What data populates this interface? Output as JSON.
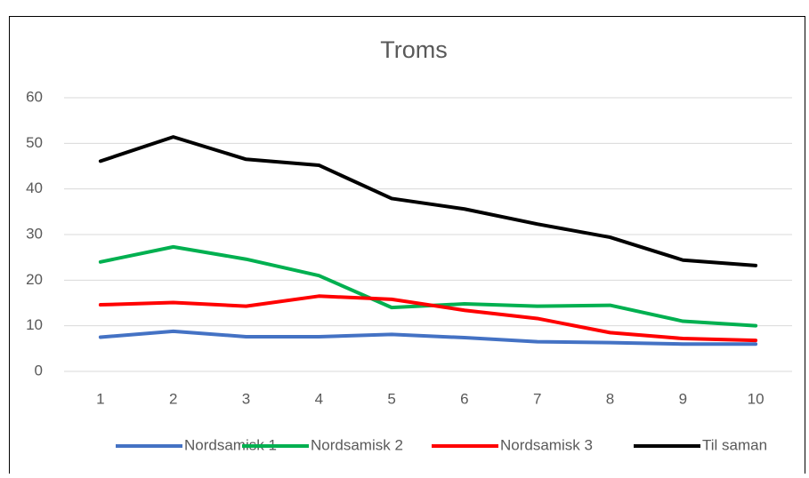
{
  "chart_data": {
    "type": "line",
    "title": "Troms",
    "categories": [
      "1",
      "2",
      "3",
      "4",
      "5",
      "6",
      "7",
      "8",
      "9",
      "10"
    ],
    "series": [
      {
        "name": "Nordsamisk 1",
        "color": "#4472c4",
        "values": [
          7.5,
          8.8,
          7.6,
          7.6,
          8.1,
          7.4,
          6.5,
          6.3,
          6.0,
          6.0
        ]
      },
      {
        "name": "Nordsamisk 2",
        "color": "#00b050",
        "values": [
          24,
          27.3,
          24.6,
          21,
          14,
          14.8,
          14.3,
          14.5,
          11,
          10
        ]
      },
      {
        "name": "Nordsamisk 3",
        "color": "#ff0000",
        "values": [
          14.6,
          15.1,
          14.3,
          16.5,
          15.8,
          13.4,
          11.6,
          8.5,
          7.2,
          6.8
        ]
      },
      {
        "name": "Til saman",
        "color": "#000000",
        "values": [
          46.1,
          51.4,
          46.5,
          45.2,
          37.9,
          35.6,
          32.3,
          29.4,
          24.4,
          23.2
        ]
      }
    ],
    "ylim": [
      0,
      60
    ],
    "yticks": [
      0,
      10,
      20,
      30,
      40,
      50,
      60
    ],
    "grid": true,
    "legend": "bottom"
  }
}
